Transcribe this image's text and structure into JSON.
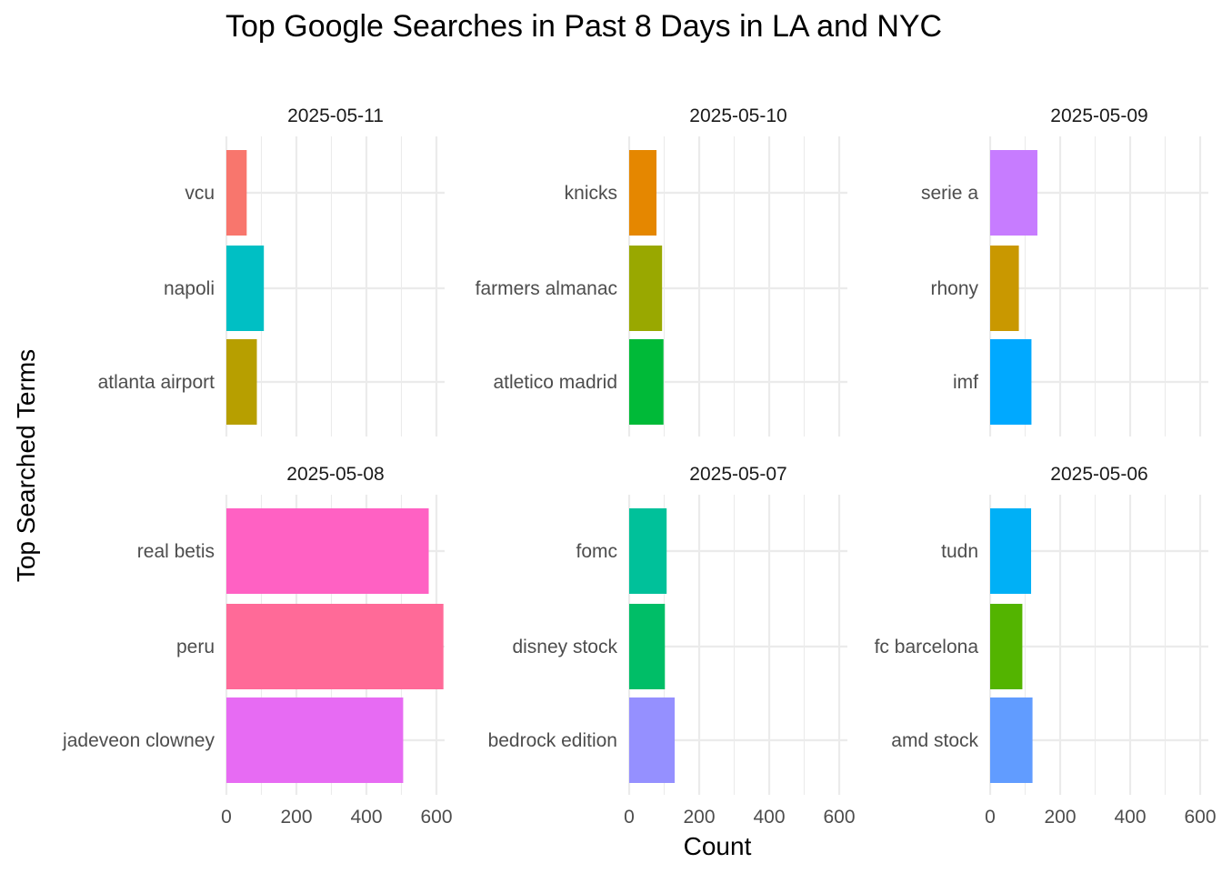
{
  "chart_data": {
    "type": "bar",
    "orientation": "horizontal",
    "facet": "wrap",
    "title": "Top Google Searches in Past 8 Days in LA and NYC",
    "xlabel": "Count",
    "ylabel": "Top Searched Terms",
    "xlim": [
      0,
      620
    ],
    "x_ticks": [
      "0",
      "200",
      "400",
      "600"
    ],
    "x_tick_values": [
      0,
      200,
      400,
      600
    ],
    "grid": true,
    "legend": "none",
    "panels": [
      {
        "label": "2025-05-11",
        "terms": [
          {
            "term": "vcu",
            "value": 58,
            "color": "#F8766D"
          },
          {
            "term": "napoli",
            "value": 107,
            "color": "#00BFC4"
          },
          {
            "term": "atlanta airport",
            "value": 87,
            "color": "#B79F00"
          }
        ]
      },
      {
        "label": "2025-05-10",
        "terms": [
          {
            "term": "knicks",
            "value": 78,
            "color": "#E58700"
          },
          {
            "term": "farmers almanac",
            "value": 94,
            "color": "#99A800"
          },
          {
            "term": "atletico madrid",
            "value": 98,
            "color": "#00BA38"
          }
        ]
      },
      {
        "label": "2025-05-09",
        "terms": [
          {
            "term": "serie a",
            "value": 135,
            "color": "#C77CFF"
          },
          {
            "term": "rhony",
            "value": 82,
            "color": "#C99800"
          },
          {
            "term": "imf",
            "value": 118,
            "color": "#00A9FF"
          }
        ]
      },
      {
        "label": "2025-05-08",
        "terms": [
          {
            "term": "real betis",
            "value": 578,
            "color": "#FF61C3"
          },
          {
            "term": "peru",
            "value": 624,
            "color": "#FF6A98"
          },
          {
            "term": "jadeveon clowney",
            "value": 505,
            "color": "#E76BF3"
          }
        ]
      },
      {
        "label": "2025-05-07",
        "terms": [
          {
            "term": "fomc",
            "value": 107,
            "color": "#00C19A"
          },
          {
            "term": "disney stock",
            "value": 102,
            "color": "#00BE67"
          },
          {
            "term": "bedrock edition",
            "value": 130,
            "color": "#9590FF"
          }
        ]
      },
      {
        "label": "2025-05-06",
        "terms": [
          {
            "term": "tudn",
            "value": 117,
            "color": "#00B0F6"
          },
          {
            "term": "fc barcelona",
            "value": 92,
            "color": "#53B400"
          },
          {
            "term": "amd stock",
            "value": 121,
            "color": "#619CFF"
          }
        ]
      }
    ]
  }
}
